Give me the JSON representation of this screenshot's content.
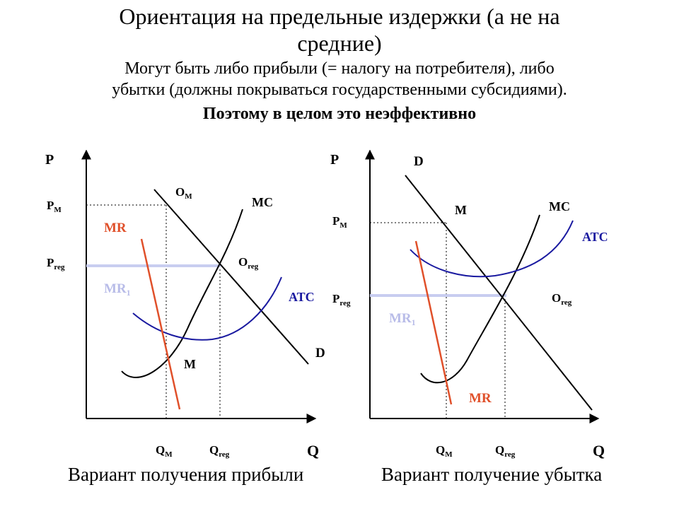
{
  "title": {
    "line1": "Ориентация на предельные издержки (а не на",
    "line2": "средние)"
  },
  "subtitle": {
    "line1": "Могут быть либо прибыли (= налогу на потребителя), либо",
    "line2": "убытки (должны покрываться государственными субсидиями)."
  },
  "conclusion": "Поэтому в целом это неэффективно",
  "colors": {
    "mr": "#e0502a",
    "atc": "#1a1aa0",
    "atc_label": "#1a1aa0",
    "mr1": "#b8bce8",
    "preg_line": "#c8cdf0",
    "black": "#000000"
  },
  "left": {
    "axis_p": "P",
    "axis_q": "Q",
    "pm": {
      "main": "P",
      "sub": "M"
    },
    "preg": {
      "main": "P",
      "sub": "reg"
    },
    "om": {
      "main": "O",
      "sub": "M"
    },
    "oreg": {
      "main": "O",
      "sub": "reg"
    },
    "mc": "MC",
    "mr": "MR",
    "mr1": {
      "main": "MR",
      "sub": "1"
    },
    "atc": "ATC",
    "d": "D",
    "m": "M",
    "qm": {
      "main": "Q",
      "sub": "M"
    },
    "qreg": {
      "main": "Q",
      "sub": "reg"
    },
    "caption": "Вариант получения прибыли"
  },
  "right": {
    "axis_p": "P",
    "axis_q": "Q",
    "pm": {
      "main": "P",
      "sub": "M"
    },
    "preg": {
      "main": "P",
      "sub": "reg"
    },
    "oreg": {
      "main": "O",
      "sub": "reg"
    },
    "mc": "MC",
    "mr": "MR",
    "mr1": {
      "main": "MR",
      "sub": "1"
    },
    "atc": "ATC",
    "d": "D",
    "m": "M",
    "qm": {
      "main": "Q",
      "sub": "M"
    },
    "qreg": {
      "main": "Q",
      "sub": "reg"
    },
    "caption": "Вариант получение убытка"
  }
}
